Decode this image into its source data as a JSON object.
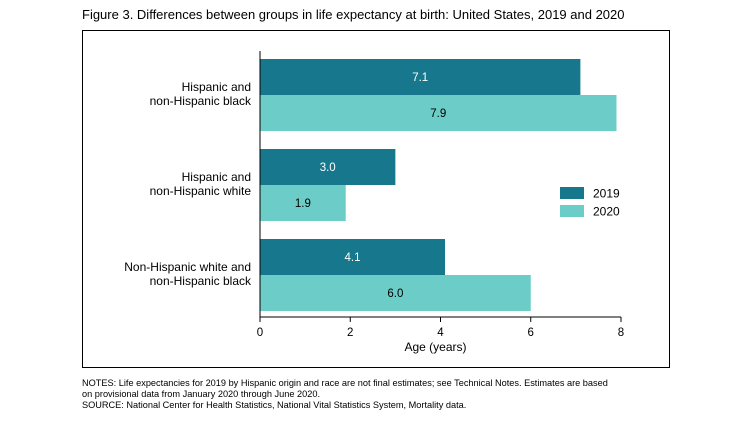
{
  "figure_title": "Figure 3. Differences between groups in life expectancy at birth: United States, 2019 and 2020",
  "notes": [
    "NOTES: Life expectancies for 2019 by Hispanic origin and race are not final estimates; see Technical Notes. Estimates are based",
    "on provisional data from January 2020 through June 2020.",
    "SOURCE: National Center for Health Statistics, National Vital Statistics System, Mortality data."
  ],
  "chart_data": {
    "type": "bar",
    "orientation": "horizontal",
    "categories": [
      [
        "Hispanic and",
        "non-Hispanic black"
      ],
      [
        "Hispanic and",
        "non-Hispanic white"
      ],
      [
        "Non-Hispanic white and",
        "non-Hispanic black"
      ]
    ],
    "series": [
      {
        "name": "2019",
        "values": [
          7.1,
          3.0,
          4.1
        ],
        "labels": [
          "7.1",
          "3.0",
          "4.1"
        ],
        "color": "#17788d",
        "label_color": "#ffffff"
      },
      {
        "name": "2020",
        "values": [
          7.9,
          1.9,
          6.0
        ],
        "labels": [
          "7.9",
          "1.9",
          "6.0"
        ],
        "color": "#6ccdc8",
        "label_color": "#000000"
      }
    ],
    "xlabel": "Age (years)",
    "xlim": [
      0,
      8
    ],
    "xticks": [
      0,
      2,
      4,
      6,
      8
    ],
    "grid": false,
    "legend_position": "right"
  }
}
